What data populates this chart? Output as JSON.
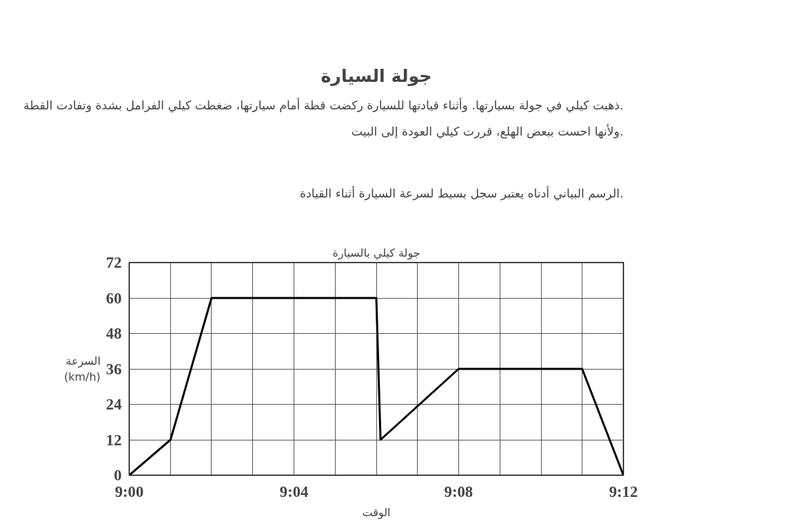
{
  "chart_data": {
    "type": "line",
    "title": "جولة السيارة",
    "annotations": [
      "ذهبت كيلي في جولة بسيارتها. وأثناء قيادتها للسيارة ركضت قطة أمام سيارتها، ضغطت كيلي الفرامل بشدة وتفادت القطة.",
      "ولأنها احست ببعض الهلع، قررت كيلي العودة إلى البيت.",
      "الرسم البياني أدناه يعتبر سجل بسيط لسرعة السيارة أثناء القيادة."
    ],
    "subtitle": "جولة كيلي بالسيارة",
    "xlabel": "الوقت",
    "ylabel": "السرعة\n(km/h)",
    "x": [
      9.0,
      9.0167,
      9.0333,
      9.1,
      9.1017,
      9.1333,
      9.1833,
      9.2
    ],
    "series": [
      {
        "color": "#000000",
        "values": [
          0,
          12,
          60,
          60,
          12,
          36,
          36,
          0
        ]
      }
    ],
    "xlim": [
      9.0,
      9.2
    ],
    "xticks": [
      {
        "value": 9.0,
        "label": "9:00"
      },
      {
        "value": 9.0167,
        "label": null
      },
      {
        "value": 9.0333,
        "label": null
      },
      {
        "value": 9.05,
        "label": null
      },
      {
        "value": 9.0667,
        "label": "9:04"
      },
      {
        "value": 9.0833,
        "label": null
      },
      {
        "value": 9.1,
        "label": null
      },
      {
        "value": 9.1167,
        "label": null
      },
      {
        "value": 9.1333,
        "label": "9:08"
      },
      {
        "value": 9.15,
        "label": null
      },
      {
        "value": 9.1667,
        "label": null
      },
      {
        "value": 9.1833,
        "label": null
      },
      {
        "value": 9.2,
        "label": "9:12"
      }
    ],
    "ylim": [
      0,
      72
    ],
    "yticks": [
      0,
      12,
      24,
      36,
      48,
      60,
      72
    ],
    "grid": true,
    "marker": "none",
    "line_style": "solid"
  }
}
